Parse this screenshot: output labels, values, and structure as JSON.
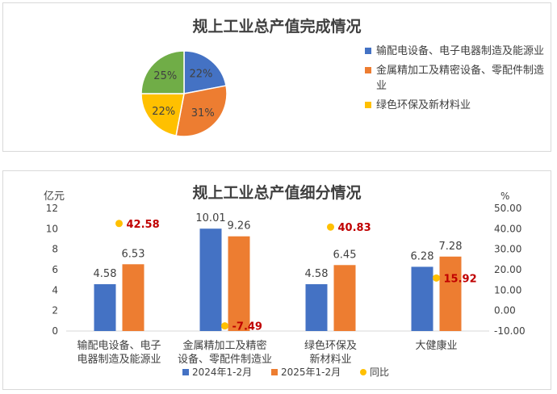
{
  "chart_data": [
    {
      "type": "pie",
      "title": "规上工业总产值完成情况",
      "slices": [
        {
          "label": "输配电设备、电子电器制造及能源业",
          "value": 22,
          "display": "22%",
          "color": "#4472c4"
        },
        {
          "label": "金属精加工及精密设备、零配件制造业",
          "value": 31,
          "display": "31%",
          "color": "#ed7d31"
        },
        {
          "label": "绿色环保及新材料业",
          "value": 22,
          "display": "22%",
          "color": "#ffc000"
        },
        {
          "label": "",
          "value": 25,
          "display": "25%",
          "color": "#70ad47"
        }
      ],
      "legend": [
        "输配电设备、电子电器制造及能源业",
        "金属精加工及精密设备、零配件制造业",
        "绿色环保及新材料业"
      ],
      "legend_position": "right"
    },
    {
      "type": "bar",
      "title": "规上工业总产值细分情况",
      "ylabel_left": "亿元",
      "ylabel_right": "%",
      "ylim_left": [
        0,
        12
      ],
      "yticks_left": [
        "0",
        "2",
        "4",
        "6",
        "8",
        "10",
        "12"
      ],
      "ylim_right": [
        -10,
        50
      ],
      "yticks_right": [
        "-10.00",
        "0.00",
        "10.00",
        "20.00",
        "30.00",
        "40.00",
        "50.00"
      ],
      "categories": [
        [
          "输配电设备、电子",
          "电器制造及能源业"
        ],
        [
          "金属精加工及精密",
          "设备、零配件制造业"
        ],
        [
          "绿色环保及",
          "新材料业"
        ],
        [
          "大健康业"
        ]
      ],
      "series": [
        {
          "name": "2024年1-2月",
          "values": [
            4.58,
            10.01,
            4.58,
            6.28
          ],
          "labels": [
            "4.58",
            "10.01",
            "4.58",
            "6.28"
          ],
          "color": "#4472c4",
          "axis": "left"
        },
        {
          "name": "2025年1-2月",
          "values": [
            6.53,
            9.26,
            6.45,
            7.28
          ],
          "labels": [
            "6.53",
            "9.26",
            "6.45",
            "7.28"
          ],
          "color": "#ed7d31",
          "axis": "left"
        },
        {
          "name": "同比",
          "values": [
            42.58,
            -7.49,
            40.83,
            15.92
          ],
          "labels": [
            "42.58",
            "-7.49",
            "40.83",
            "15.92"
          ],
          "color": "#ffc000",
          "label_color": "#c00000",
          "axis": "right",
          "mark": "dot"
        }
      ],
      "legend_position": "bottom"
    }
  ]
}
